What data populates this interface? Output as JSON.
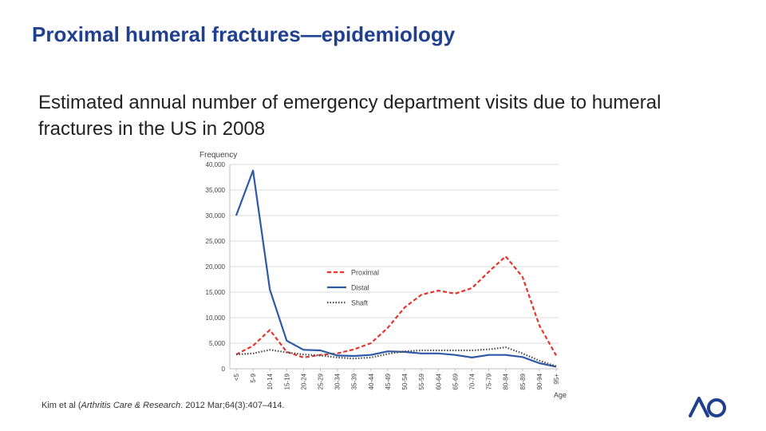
{
  "slide": {
    "title": "Proximal humeral fractures—epidemiology",
    "subtitle": "Estimated annual number of emergency department visits due to humeral fractures in the US in 2008",
    "citation_prefix": "Kim et al (",
    "citation_journal": "Arthritis Care & Research",
    "citation_suffix": ". 2012 Mar;64(3):407–414.",
    "logo_text": "AO"
  },
  "colors": {
    "title": "#1f3f8f",
    "proximal": "#e8342d",
    "distal": "#2e59a6",
    "shaft": "#4a4a4a",
    "grid": "#d9d9d9",
    "logo": "#1f3f8f"
  },
  "chart_data": {
    "type": "line",
    "title": "",
    "ylabel": "Frequency",
    "xlabel": "Age",
    "ylim": [
      0,
      40000
    ],
    "yticks": [
      "0",
      "5,000",
      "10,000",
      "15,000",
      "20,000",
      "25,000",
      "30,000",
      "35,000",
      "40,000"
    ],
    "grid": "horizontal",
    "legend_position": "center-right",
    "categories": [
      "<5",
      "5-9",
      "10-14",
      "15-19",
      "20-24",
      "25-29",
      "30-34",
      "35-39",
      "40-44",
      "45-49",
      "50-54",
      "55-59",
      "60-64",
      "65-69",
      "70-74",
      "75-79",
      "80-84",
      "85-89",
      "90-94",
      "95+"
    ],
    "series": [
      {
        "name": "Proximal",
        "style": "dashed",
        "color": "#e8342d",
        "values": [
          2800,
          4500,
          7600,
          3300,
          2200,
          2700,
          3000,
          3800,
          5000,
          8000,
          12000,
          14500,
          15300,
          14700,
          15800,
          19000,
          22000,
          18000,
          8500,
          2600
        ]
      },
      {
        "name": "Distal",
        "style": "solid",
        "color": "#2e59a6",
        "values": [
          30000,
          38800,
          15500,
          5500,
          3700,
          3600,
          2600,
          2500,
          2700,
          3400,
          3300,
          3000,
          3000,
          2700,
          2200,
          2700,
          2700,
          2300,
          1100,
          400
        ]
      },
      {
        "name": "Shaft",
        "style": "dotted",
        "color": "#4a4a4a",
        "values": [
          2800,
          3000,
          3700,
          3200,
          2800,
          2600,
          2200,
          2000,
          2200,
          2900,
          3400,
          3600,
          3600,
          3600,
          3600,
          3800,
          4200,
          3000,
          1600,
          500
        ]
      }
    ]
  }
}
